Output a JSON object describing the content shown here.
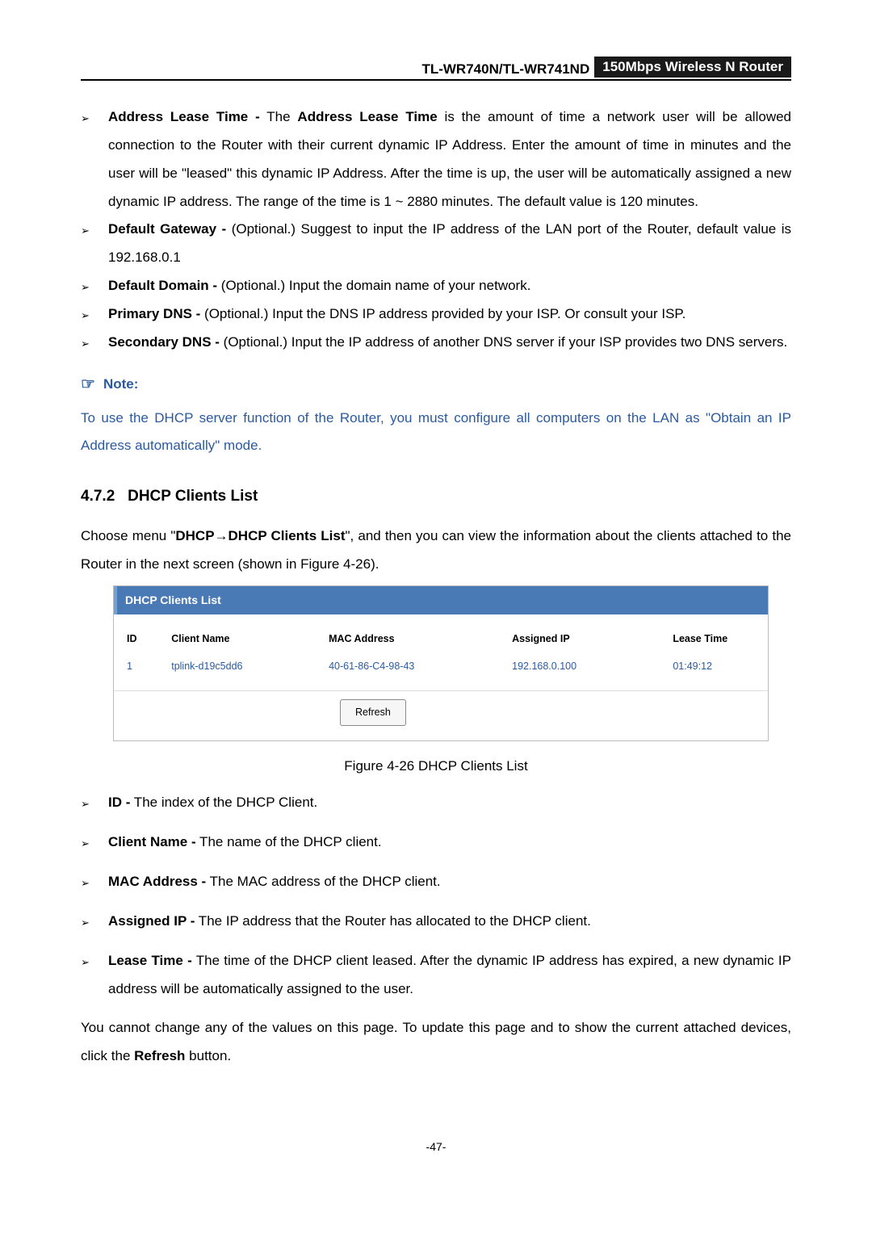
{
  "header": {
    "model": "TL-WR740N/TL-WR741ND",
    "product": "150Mbps Wireless N Router"
  },
  "bullets_top": [
    {
      "term": "Address Lease Time -",
      "text": " The ",
      "term2": "Address Lease Time",
      "rest": " is the amount of time a network user will be allowed connection to the Router with their current dynamic IP Address. Enter the amount of time in minutes and the user will be \"leased\" this dynamic IP Address. After the time is up, the user will be automatically assigned a new dynamic IP address. The range of the time is 1 ~ 2880 minutes. The default value is 120 minutes."
    },
    {
      "term": "Default Gateway -",
      "rest": " (Optional.) Suggest to input the IP address of the LAN port of the Router, default value is 192.168.0.1"
    },
    {
      "term": "Default Domain -",
      "rest": " (Optional.) Input the domain name of your network."
    },
    {
      "term": "Primary DNS -",
      "rest": " (Optional.) Input the DNS IP address provided by your ISP. Or consult your ISP."
    },
    {
      "term": "Secondary DNS -",
      "rest": " (Optional.) Input the IP address of another DNS server if your ISP provides two DNS servers."
    }
  ],
  "note": {
    "label": "Note:",
    "text": "To use the DHCP server function of the Router, you must configure all computers on the LAN as \"Obtain an IP Address automatically\" mode."
  },
  "section": {
    "num": "4.7.2",
    "title": "DHCP Clients List"
  },
  "intro": {
    "pre": "Choose menu \"",
    "b1": "DHCP",
    "arrow": "→",
    "b2": "DHCP Clients List",
    "post": "\", and then you can view the information about the clients attached to the Router in the next screen (shown in Figure 4-26)."
  },
  "figure": {
    "title": "DHCP Clients List",
    "columns": [
      "ID",
      "Client Name",
      "MAC Address",
      "Assigned IP",
      "Lease Time"
    ],
    "row": [
      "1",
      "tplink-d19c5dd6",
      "40-61-86-C4-98-43",
      "192.168.0.100",
      "01:49:12"
    ],
    "button": "Refresh",
    "caption": "Figure 4-26   DHCP Clients List"
  },
  "bullets_bottom": [
    {
      "term": "ID -",
      "rest": " The index of the DHCP Client."
    },
    {
      "term": "Client Name -",
      "rest": " The name of the DHCP client."
    },
    {
      "term": "MAC Address -",
      "rest": " The MAC address of the DHCP client."
    },
    {
      "term": "Assigned IP -",
      "rest": " The IP address that the Router has allocated to the DHCP client."
    },
    {
      "term": "Lease Time -",
      "rest": " The time of the DHCP client leased. After the dynamic IP address has expired, a new dynamic IP address will be automatically assigned to the user."
    }
  ],
  "closing": {
    "pre": "You cannot change any of the values on this page. To update this page and to show the current attached devices, click the ",
    "bold": "Refresh",
    "post": " button."
  },
  "footer": "-47-"
}
